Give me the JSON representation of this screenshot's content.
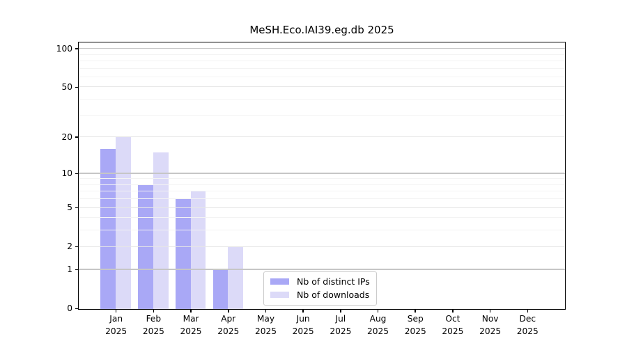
{
  "chart_data": {
    "type": "bar",
    "title": "MeSH.Eco.IAI39.eg.db 2025",
    "x_categories": [
      "Jan",
      "Feb",
      "Mar",
      "Apr",
      "May",
      "Jun",
      "Jul",
      "Aug",
      "Sep",
      "Oct",
      "Nov",
      "Dec"
    ],
    "x_year": "2025",
    "series": [
      {
        "name": "Nb of distinct IPs",
        "color": "#a9a8f6",
        "values": [
          16,
          8,
          6,
          1,
          0,
          0,
          0,
          0,
          0,
          0,
          0,
          0
        ]
      },
      {
        "name": "Nb of downloads",
        "color": "#dcdaf8",
        "values": [
          20,
          15,
          7,
          2,
          0,
          0,
          0,
          0,
          0,
          0,
          0,
          0
        ]
      }
    ],
    "y_scale": "log1p",
    "y_ticks": [
      0,
      1,
      2,
      5,
      10,
      20,
      50,
      100
    ],
    "y_minor_gridlines": [
      3,
      4,
      6,
      7,
      8,
      9,
      30,
      40,
      60,
      70,
      80,
      90
    ],
    "y_max": 112,
    "grid": "on",
    "legend_position": "lower-center-inside"
  },
  "colors": {
    "axis": "#000000",
    "background": "#ffffff",
    "grid_decade": "#c6c6c6",
    "grid_major": "#e6e6e6",
    "grid_minor": "#f3f3f3",
    "legend_border": "#cbcbcb"
  }
}
